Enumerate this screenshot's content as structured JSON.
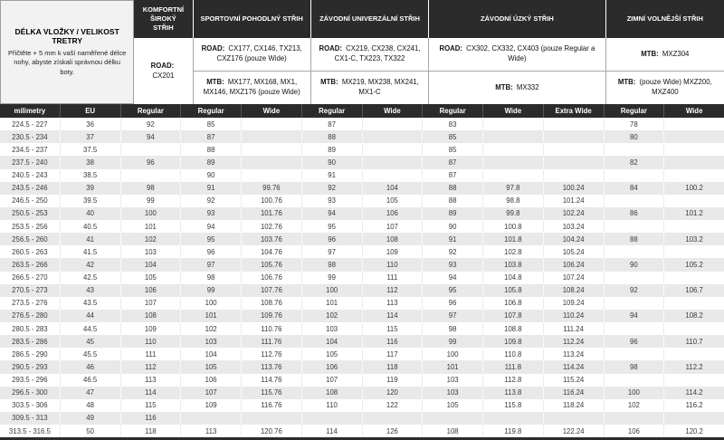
{
  "chart_data": {
    "type": "table",
    "title": "DÉLKA VLOŽKY / VELIKOST TRETRY",
    "info_panel": {
      "title": "DÉLKA VLOŽKY / VELIKOST TRETRY",
      "subtitle": "Přičtěte + 5 mm k vaší naměřené délce nohy, abyste získali správnou délku boty."
    },
    "groups": [
      {
        "title": "KOMFORTNÍ ŠIROKÝ STŘIH",
        "span": 1,
        "cells": [
          {
            "label": "ROAD:",
            "text": "CX201",
            "rows": 2
          }
        ]
      },
      {
        "title": "SPORTOVNÍ POHODLNÝ STŘIH",
        "span": 2,
        "cells": [
          {
            "label": "ROAD:",
            "text": "CX177, CX146, TX213, CXZ176 (pouze Wide)",
            "rows": 1
          },
          {
            "label": "MTB:",
            "text": "MX177, MX168, MX1, MX146, MXZ176 (pouze Wide)",
            "rows": 1
          }
        ]
      },
      {
        "title": "ZÁVODNÍ UNIVERZÁLNÍ STŘIH",
        "span": 2,
        "cells": [
          {
            "label": "ROAD:",
            "text": "CX219, CX238, CX241, CX1-C, TX223, TX322",
            "rows": 1
          },
          {
            "label": "MTB:",
            "text": "MX219, MX238, MX241, MX1-C",
            "rows": 1
          }
        ]
      },
      {
        "title": "ZÁVODNÍ ÚZKÝ STŘIH",
        "span": 3,
        "cells": [
          {
            "label": "ROAD:",
            "text": "CX302, CX332, CX403 (pouze Regular a Wide)",
            "rows": 1
          },
          {
            "label": "MTB:",
            "text": "MX332",
            "rows": 1
          }
        ]
      },
      {
        "title": "ZIMNÍ VOLNĚJŠÍ STŘIH",
        "span": 2,
        "cells": [
          {
            "label": "MTB:",
            "text": "MXZ304",
            "rows": 1
          },
          {
            "label": "MTB:",
            "text": "(pouze Wide) MXZ200, MXZ400",
            "rows": 1
          }
        ]
      }
    ],
    "column_headers": [
      "milimetry",
      "EU",
      "Regular",
      "Regular",
      "Wide",
      "Regular",
      "Wide",
      "Regular",
      "Wide",
      "Extra Wide",
      "Regular",
      "Wide"
    ],
    "rows": [
      [
        "224.5 - 227",
        "36",
        "92",
        "85",
        "",
        "87",
        "",
        "83",
        "",
        "",
        "78",
        ""
      ],
      [
        "230.5 - 234",
        "37",
        "94",
        "87",
        "",
        "88",
        "",
        "85",
        "",
        "",
        "80",
        ""
      ],
      [
        "234.5 - 237",
        "37.5",
        "",
        "88",
        "",
        "89",
        "",
        "85",
        "",
        "",
        "",
        ""
      ],
      [
        "237.5 - 240",
        "38",
        "96",
        "89",
        "",
        "90",
        "",
        "87",
        "",
        "",
        "82",
        ""
      ],
      [
        "240.5 - 243",
        "38.5",
        "",
        "90",
        "",
        "91",
        "",
        "87",
        "",
        "",
        "",
        ""
      ],
      [
        "243.5 - 246",
        "39",
        "98",
        "91",
        "99.76",
        "92",
        "104",
        "88",
        "97.8",
        "100.24",
        "84",
        "100.2"
      ],
      [
        "246.5 - 250",
        "39.5",
        "99",
        "92",
        "100.76",
        "93",
        "105",
        "88",
        "98.8",
        "101.24",
        "",
        ""
      ],
      [
        "250.5 - 253",
        "40",
        "100",
        "93",
        "101.76",
        "94",
        "106",
        "89",
        "99.8",
        "102.24",
        "86",
        "101.2"
      ],
      [
        "253.5 - 256",
        "40.5",
        "101",
        "94",
        "102.76",
        "95",
        "107",
        "90",
        "100.8",
        "103.24",
        "",
        ""
      ],
      [
        "256.5 - 260",
        "41",
        "102",
        "95",
        "103.76",
        "96",
        "108",
        "91",
        "101.8",
        "104.24",
        "88",
        "103.2"
      ],
      [
        "260.5 - 263",
        "41.5",
        "103",
        "96",
        "104.76",
        "97",
        "109",
        "92",
        "102.8",
        "105.24",
        "",
        ""
      ],
      [
        "263.5 - 266",
        "42",
        "104",
        "97",
        "105.76",
        "98",
        "110",
        "93",
        "103.8",
        "106.24",
        "90",
        "105.2"
      ],
      [
        "266.5 - 270",
        "42.5",
        "105",
        "98",
        "106.76",
        "99",
        "111",
        "94",
        "104.8",
        "107.24",
        "",
        ""
      ],
      [
        "270.5 - 273",
        "43",
        "106",
        "99",
        "107.76",
        "100",
        "112",
        "95",
        "105.8",
        "108.24",
        "92",
        "106.7"
      ],
      [
        "273.5 - 276",
        "43.5",
        "107",
        "100",
        "108.76",
        "101",
        "113",
        "96",
        "106.8",
        "109.24",
        "",
        ""
      ],
      [
        "276.5 - 280",
        "44",
        "108",
        "101",
        "109.76",
        "102",
        "114",
        "97",
        "107.8",
        "110.24",
        "94",
        "108.2"
      ],
      [
        "280.5 - 283",
        "44.5",
        "109",
        "102",
        "110.76",
        "103",
        "115",
        "98",
        "108.8",
        "111.24",
        "",
        ""
      ],
      [
        "283.5 - 286",
        "45",
        "110",
        "103",
        "111.76",
        "104",
        "116",
        "99",
        "109.8",
        "112.24",
        "96",
        "110.7"
      ],
      [
        "286.5 - 290",
        "45.5",
        "111",
        "104",
        "112.76",
        "105",
        "117",
        "100",
        "110.8",
        "113.24",
        "",
        ""
      ],
      [
        "290.5 - 293",
        "46",
        "112",
        "105",
        "113.76",
        "106",
        "118",
        "101",
        "111.8",
        "114.24",
        "98",
        "112.2"
      ],
      [
        "293.5 - 296",
        "46.5",
        "113",
        "106",
        "114.76",
        "107",
        "119",
        "103",
        "112.8",
        "115.24",
        "",
        ""
      ],
      [
        "296.5 - 300",
        "47",
        "114",
        "107",
        "115.76",
        "108",
        "120",
        "103",
        "113.8",
        "116.24",
        "100",
        "114.2"
      ],
      [
        "303.5 - 306",
        "48",
        "115",
        "109",
        "116.76",
        "110",
        "122",
        "105",
        "115.8",
        "118.24",
        "102",
        "116.2"
      ],
      [
        "309.5 - 313",
        "49",
        "116",
        "",
        "",
        "",
        "",
        "",
        "",
        "",
        "",
        ""
      ],
      [
        "313.5 - 316.5",
        "50",
        "118",
        "113",
        "120.76",
        "114",
        "126",
        "108",
        "119.8",
        "122.24",
        "106",
        "120.2"
      ]
    ],
    "colors": {
      "header_bg": "#2b2b2b",
      "header_text": "#ffffff",
      "stripe_gray": "#e9e9e9",
      "info_panel_bg": "#f2f2f2"
    },
    "layout_hints": {
      "columns_total": 12,
      "zebra_striping": true,
      "grid": "light vertical separators"
    }
  }
}
